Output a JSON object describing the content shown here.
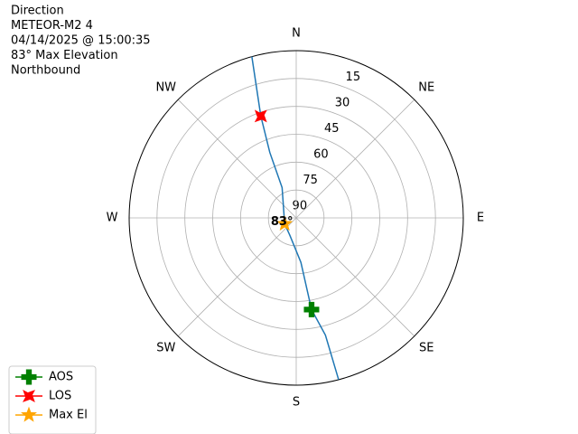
{
  "chart_data": {
    "type": "polar",
    "title": [
      "Direction",
      "METEOR-M2 4",
      "04/14/2025 @ 15:00:35",
      "83° Max Elevation",
      "Northbound"
    ],
    "xticks": [
      {
        "value": 0,
        "label": "N"
      },
      {
        "value": 45,
        "label": "NE"
      },
      {
        "value": 90,
        "label": "E"
      },
      {
        "value": 135,
        "label": "SE"
      },
      {
        "value": 180,
        "label": "S"
      },
      {
        "value": 225,
        "label": "SW"
      },
      {
        "value": 270,
        "label": "W"
      },
      {
        "value": 315,
        "label": "NW"
      }
    ],
    "ylim": [
      90,
      0
    ],
    "yticks": [
      15,
      30,
      45,
      60,
      75,
      90
    ],
    "grid": true,
    "legend": "lower left",
    "series": [
      {
        "color": "#1f77b4",
        "marker": "line",
        "x": [
          165.3,
          166,
          170.5,
          174,
          200,
          243,
          335,
          338,
          340.8,
          344.6
        ],
        "values": [
          0,
          25,
          40,
          66,
          80,
          83,
          72,
          52,
          32,
          0
        ]
      },
      {
        "name": "AOS",
        "color": "#008000",
        "marker": "plus",
        "x": [
          170.5
        ],
        "values": [
          40
        ]
      },
      {
        "name": "LOS",
        "color": "#ff0000",
        "marker": "x",
        "x": [
          340.8
        ],
        "values": [
          32
        ]
      },
      {
        "name": "Max El",
        "color": "#ffa500",
        "marker": "star",
        "x": [
          243
        ],
        "values": [
          83
        ],
        "value_labels": [
          "83°"
        ]
      }
    ]
  }
}
